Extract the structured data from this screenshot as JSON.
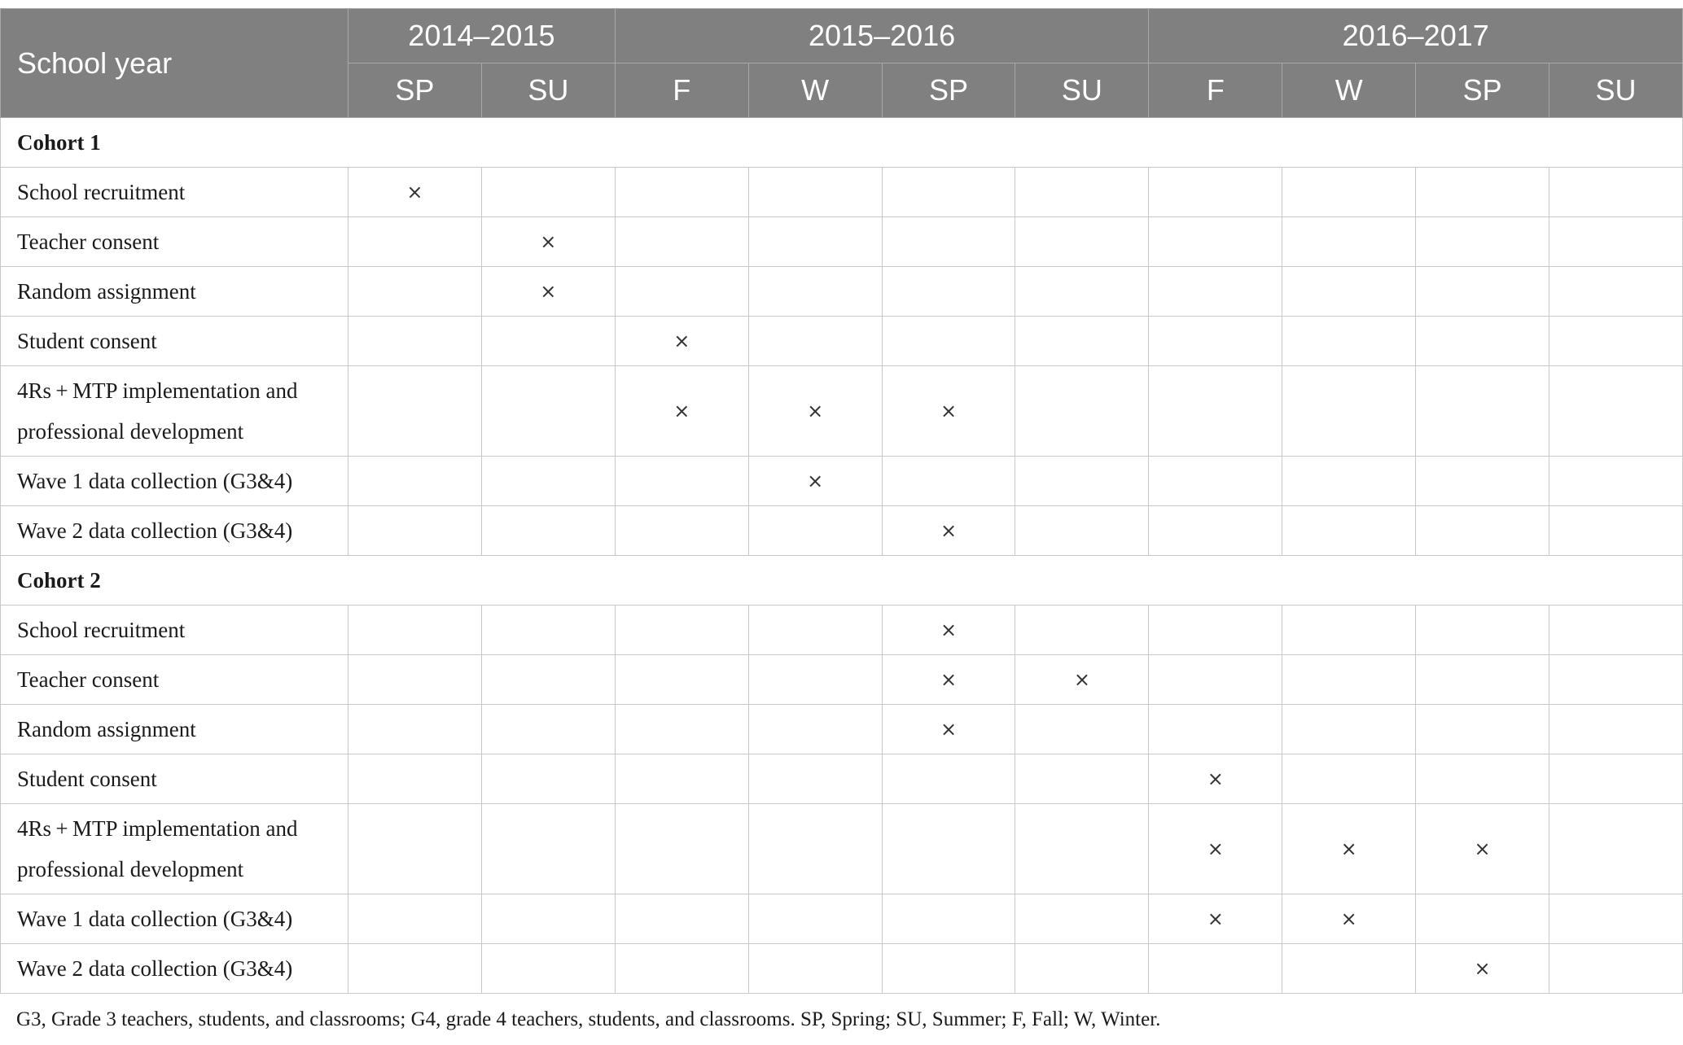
{
  "table": {
    "corner_label": "School year",
    "years": [
      {
        "label": "2014–2015",
        "span": 2
      },
      {
        "label": "2015–2016",
        "span": 4
      },
      {
        "label": "2016–2017",
        "span": 4
      }
    ],
    "terms": [
      "SP",
      "SU",
      "F",
      "W",
      "SP",
      "SU",
      "F",
      "W",
      "SP",
      "SU"
    ],
    "mark_symbol": "×",
    "cohorts": [
      {
        "label": "Cohort 1",
        "rows": [
          {
            "label": "School recruitment",
            "marks": [
              1,
              0,
              0,
              0,
              0,
              0,
              0,
              0,
              0,
              0
            ]
          },
          {
            "label": "Teacher consent",
            "marks": [
              0,
              1,
              0,
              0,
              0,
              0,
              0,
              0,
              0,
              0
            ]
          },
          {
            "label": "Random assignment",
            "marks": [
              0,
              1,
              0,
              0,
              0,
              0,
              0,
              0,
              0,
              0
            ]
          },
          {
            "label": "Student consent",
            "marks": [
              0,
              0,
              1,
              0,
              0,
              0,
              0,
              0,
              0,
              0
            ]
          },
          {
            "label": "4Rs + MTP implementation and professional development",
            "marks": [
              0,
              0,
              1,
              1,
              1,
              0,
              0,
              0,
              0,
              0
            ],
            "tall": true
          },
          {
            "label": "Wave 1 data collection (G3&4)",
            "marks": [
              0,
              0,
              0,
              1,
              0,
              0,
              0,
              0,
              0,
              0
            ]
          },
          {
            "label": "Wave 2 data collection (G3&4)",
            "marks": [
              0,
              0,
              0,
              0,
              1,
              0,
              0,
              0,
              0,
              0
            ]
          }
        ]
      },
      {
        "label": "Cohort 2",
        "rows": [
          {
            "label": "School recruitment",
            "marks": [
              0,
              0,
              0,
              0,
              1,
              0,
              0,
              0,
              0,
              0
            ]
          },
          {
            "label": "Teacher consent",
            "marks": [
              0,
              0,
              0,
              0,
              1,
              1,
              0,
              0,
              0,
              0
            ]
          },
          {
            "label": "Random assignment",
            "marks": [
              0,
              0,
              0,
              0,
              1,
              0,
              0,
              0,
              0,
              0
            ]
          },
          {
            "label": "Student consent",
            "marks": [
              0,
              0,
              0,
              0,
              0,
              0,
              1,
              0,
              0,
              0
            ]
          },
          {
            "label": "4Rs + MTP implementation and professional development",
            "marks": [
              0,
              0,
              0,
              0,
              0,
              0,
              1,
              1,
              1,
              0
            ],
            "tall": true
          },
          {
            "label": "Wave 1 data collection (G3&4)",
            "marks": [
              0,
              0,
              0,
              0,
              0,
              0,
              1,
              1,
              0,
              0
            ]
          },
          {
            "label": "Wave 2 data collection (G3&4)",
            "marks": [
              0,
              0,
              0,
              0,
              0,
              0,
              0,
              0,
              1,
              0
            ]
          }
        ]
      }
    ]
  },
  "footnote": "G3, Grade 3 teachers, students, and classrooms; G4, grade 4 teachers, students, and classrooms. SP, Spring; SU, Summer; F, Fall; W, Winter."
}
